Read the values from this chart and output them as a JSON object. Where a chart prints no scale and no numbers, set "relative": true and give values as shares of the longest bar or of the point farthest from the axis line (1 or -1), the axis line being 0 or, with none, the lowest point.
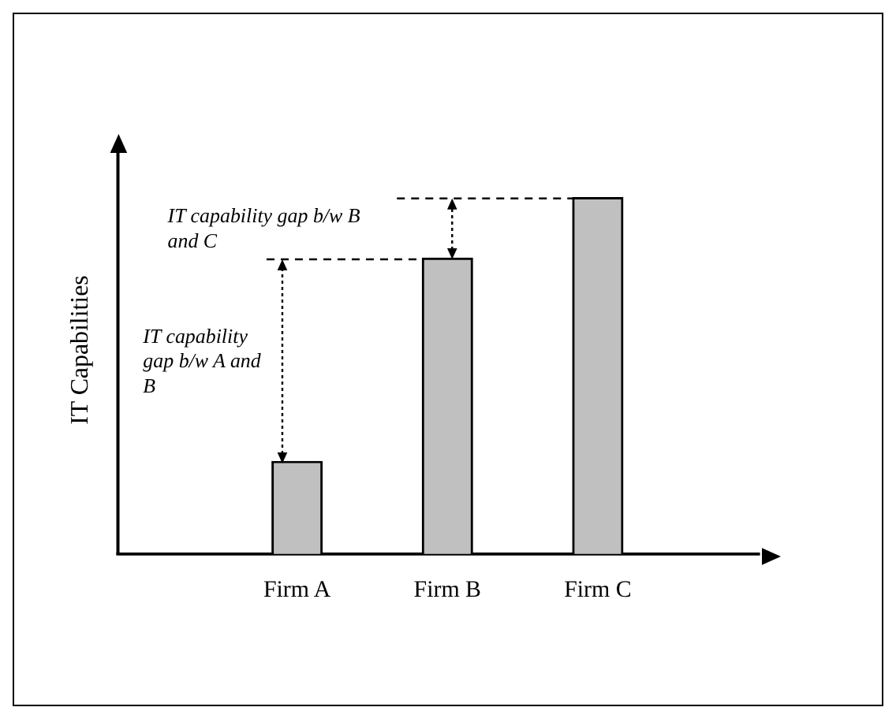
{
  "chart_data": {
    "type": "bar",
    "relative": true,
    "ylabel": "IT Capabilities",
    "categories": [
      "Firm A",
      "Firm B",
      "Firm C"
    ],
    "values": [
      0.26,
      0.83,
      1
    ],
    "color": "#c0c0c0",
    "grid": false,
    "legend": false,
    "annotations": [
      "IT capability gap b/w A and B",
      "IT capability gap b/w B and C"
    ]
  }
}
